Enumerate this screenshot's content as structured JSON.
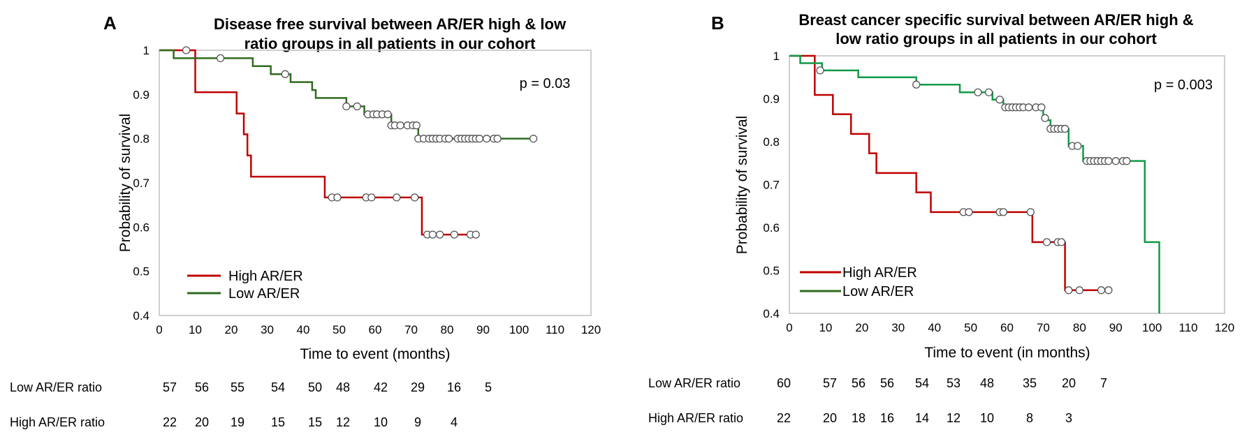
{
  "chart_data": [
    {
      "panel": "A",
      "type": "line",
      "title": [
        "Disease free survival between AR/ER high & low",
        "ratio groups in all patients in our cohort"
      ],
      "xlabel": "Time to event (months)",
      "ylabel": "Probability of survival",
      "xlim": [
        0,
        120
      ],
      "ylim": [
        0.4,
        1.0
      ],
      "x_ticks": [
        0,
        10,
        20,
        30,
        40,
        50,
        60,
        70,
        80,
        90,
        100,
        110,
        120
      ],
      "y_ticks": [
        0.4,
        0.5,
        0.6,
        0.7,
        0.8,
        0.9,
        1.0
      ],
      "y_tick_labels": [
        "0.4",
        "0.5",
        "0.6",
        "0.7",
        "0.8",
        "0.9",
        "1"
      ],
      "p_value": "p = 0.03",
      "legend_position": "bottom-left",
      "series": [
        {
          "name": "High AR/ER",
          "color": "#c00000",
          "steps": [
            [
              0,
              1.0
            ],
            [
              10,
              0.905
            ],
            [
              21.5,
              0.857
            ],
            [
              23.5,
              0.81
            ],
            [
              24.5,
              0.762
            ],
            [
              25.5,
              0.714
            ],
            [
              46,
              0.667
            ],
            [
              73,
              0.583
            ],
            [
              89,
              0.583
            ]
          ],
          "censored": [
            [
              7.5,
              1.0
            ],
            [
              48,
              0.667
            ],
            [
              49.5,
              0.667
            ],
            [
              57.5,
              0.667
            ],
            [
              59,
              0.667
            ],
            [
              66,
              0.667
            ],
            [
              71,
              0.667
            ],
            [
              74.5,
              0.583
            ],
            [
              76,
              0.583
            ],
            [
              78,
              0.583
            ],
            [
              82,
              0.583
            ],
            [
              86.5,
              0.583
            ],
            [
              88,
              0.583
            ]
          ]
        },
        {
          "name": "Low AR/ER",
          "color": "#2e6b1f",
          "steps": [
            [
              0,
              1.0
            ],
            [
              4,
              0.982
            ],
            [
              26,
              0.964
            ],
            [
              31,
              0.946
            ],
            [
              36.5,
              0.928
            ],
            [
              42.5,
              0.91
            ],
            [
              43.5,
              0.892
            ],
            [
              52,
              0.873
            ],
            [
              57,
              0.855
            ],
            [
              64.5,
              0.83
            ],
            [
              72,
              0.8
            ],
            [
              104,
              0.8
            ]
          ],
          "censored": [
            [
              17,
              0.982
            ],
            [
              35,
              0.946
            ],
            [
              52,
              0.873
            ],
            [
              55,
              0.873
            ],
            [
              58,
              0.855
            ],
            [
              59.5,
              0.855
            ],
            [
              60.5,
              0.855
            ],
            [
              62,
              0.855
            ],
            [
              63.5,
              0.855
            ],
            [
              64.5,
              0.83
            ],
            [
              65.5,
              0.83
            ],
            [
              67,
              0.83
            ],
            [
              69,
              0.83
            ],
            [
              70.5,
              0.83
            ],
            [
              71.5,
              0.83
            ],
            [
              72,
              0.8
            ],
            [
              73.5,
              0.8
            ],
            [
              75,
              0.8
            ],
            [
              76,
              0.8
            ],
            [
              77,
              0.8
            ],
            [
              78,
              0.8
            ],
            [
              79.5,
              0.8
            ],
            [
              80.5,
              0.8
            ],
            [
              83,
              0.8
            ],
            [
              84,
              0.8
            ],
            [
              85,
              0.8
            ],
            [
              86,
              0.8
            ],
            [
              87,
              0.8
            ],
            [
              88,
              0.8
            ],
            [
              89,
              0.8
            ],
            [
              91,
              0.8
            ],
            [
              93,
              0.8
            ],
            [
              94,
              0.8
            ],
            [
              104,
              0.8
            ]
          ]
        }
      ],
      "risk_table": {
        "rows": [
          {
            "label": "Low AR/ER ratio",
            "times": [
              0,
              10,
              20,
              30,
              40,
              48,
              60,
              70,
              80,
              90
            ],
            "values": [
              "57",
              "56",
              "55",
              "54",
              "50",
              "48",
              "42",
              "29",
              "16",
              "5"
            ]
          },
          {
            "label": "High AR/ER ratio",
            "times": [
              0,
              10,
              20,
              30,
              40,
              48,
              60,
              70,
              80
            ],
            "values": [
              "22",
              "20",
              "19",
              "15",
              "15",
              "12",
              "10",
              "9",
              "4"
            ]
          }
        ]
      }
    },
    {
      "panel": "B",
      "type": "line",
      "title": [
        "Breast cancer specific survival between AR/ER high &",
        "low ratio groups in all patients in our cohort"
      ],
      "xlabel": "Time to event (in months)",
      "ylabel": "Probability of survival",
      "xlim": [
        0,
        120
      ],
      "ylim": [
        0.4,
        1.0
      ],
      "x_ticks": [
        0,
        10,
        20,
        30,
        40,
        50,
        60,
        70,
        80,
        90,
        100,
        110,
        120
      ],
      "y_ticks": [
        0.4,
        0.5,
        0.6,
        0.7,
        0.8,
        0.9,
        1.0
      ],
      "y_tick_labels": [
        "0.4",
        "0.5",
        "0.6",
        "0.7",
        "0.8",
        "0.9",
        "1"
      ],
      "p_value": "p = 0.003",
      "legend_position": "bottom-left",
      "series": [
        {
          "name": "High AR/ER",
          "color": "#c00000",
          "steps": [
            [
              0,
              1.0
            ],
            [
              7,
              0.909
            ],
            [
              12,
              0.864
            ],
            [
              17,
              0.818
            ],
            [
              22,
              0.773
            ],
            [
              24,
              0.727
            ],
            [
              35,
              0.682
            ],
            [
              39,
              0.636
            ],
            [
              67,
              0.566
            ],
            [
              76,
              0.454
            ],
            [
              88,
              0.454
            ]
          ],
          "censored": [
            [
              48,
              0.636
            ],
            [
              49.5,
              0.636
            ],
            [
              58,
              0.636
            ],
            [
              59,
              0.636
            ],
            [
              66.5,
              0.636
            ],
            [
              71,
              0.566
            ],
            [
              74,
              0.566
            ],
            [
              75,
              0.566
            ],
            [
              77,
              0.454
            ],
            [
              80,
              0.454
            ],
            [
              86,
              0.454
            ],
            [
              88,
              0.454
            ]
          ]
        },
        {
          "name": "Low AR/ER",
          "color": "#119a46",
          "line_label_color": "#2e6b1f",
          "steps": [
            [
              0,
              1.0
            ],
            [
              3,
              0.983
            ],
            [
              9,
              0.966
            ],
            [
              19,
              0.95
            ],
            [
              35,
              0.933
            ],
            [
              47,
              0.915
            ],
            [
              56,
              0.898
            ],
            [
              59,
              0.88
            ],
            [
              70,
              0.85
            ],
            [
              72,
              0.83
            ],
            [
              77,
              0.79
            ],
            [
              81,
              0.755
            ],
            [
              98,
              0.566
            ],
            [
              102,
              0.4
            ]
          ],
          "censored": [
            [
              8.5,
              0.966
            ],
            [
              35,
              0.933
            ],
            [
              52,
              0.915
            ],
            [
              55,
              0.915
            ],
            [
              58,
              0.898
            ],
            [
              59.5,
              0.88
            ],
            [
              60.5,
              0.88
            ],
            [
              61.5,
              0.88
            ],
            [
              62.5,
              0.88
            ],
            [
              63.5,
              0.88
            ],
            [
              64.5,
              0.88
            ],
            [
              66,
              0.88
            ],
            [
              68,
              0.88
            ],
            [
              69.5,
              0.88
            ],
            [
              70.5,
              0.855
            ],
            [
              72,
              0.83
            ],
            [
              73,
              0.83
            ],
            [
              74,
              0.83
            ],
            [
              75,
              0.83
            ],
            [
              76,
              0.83
            ],
            [
              78,
              0.79
            ],
            [
              79.5,
              0.79
            ],
            [
              82,
              0.755
            ],
            [
              83,
              0.755
            ],
            [
              84,
              0.755
            ],
            [
              85,
              0.755
            ],
            [
              86,
              0.755
            ],
            [
              87,
              0.755
            ],
            [
              88,
              0.755
            ],
            [
              90,
              0.755
            ],
            [
              92,
              0.755
            ],
            [
              93,
              0.755
            ]
          ]
        }
      ],
      "risk_table": {
        "rows": [
          {
            "label": "Low AR/ER ratio",
            "times": [
              0,
              12,
              17,
              24,
              33,
              40,
              48,
              59,
              70,
              80
            ],
            "values": [
              "60",
              "57",
              "56",
              "56",
              "54",
              "53",
              "48",
              "35",
              "20",
              "7"
            ]
          },
          {
            "label": "High AR/ER ratio",
            "times": [
              0,
              12,
              17,
              24,
              33,
              40,
              48,
              59,
              70
            ],
            "values": [
              "22",
              "20",
              "18",
              "16",
              "14",
              "12",
              "10",
              "8",
              "3"
            ]
          }
        ]
      }
    }
  ]
}
